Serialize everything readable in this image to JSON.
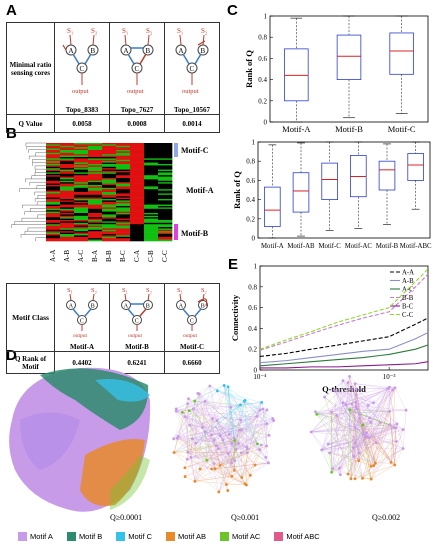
{
  "panels": {
    "A": "A",
    "B": "B",
    "C": "C",
    "D": "D",
    "E": "E"
  },
  "tableA": {
    "row1_label": "Minimal ratio sensing cores",
    "row2_label": "Q Value",
    "topologies": [
      {
        "name": "Topo_8383",
        "q": "0.0058"
      },
      {
        "name": "Topo_7627",
        "q": "0.0008"
      },
      {
        "name": "Topo_10567",
        "q": "0.0014"
      }
    ]
  },
  "circuit": {
    "s1": "S₁",
    "s2": "S₂",
    "a": "A",
    "b": "B",
    "c": "C",
    "output": "output"
  },
  "heatmap": {
    "columns": [
      "A-A",
      "A-B",
      "A-C",
      "B-A",
      "B-B",
      "B-C",
      "C-A",
      "C-B",
      "C-C"
    ],
    "cluster_labels": [
      "Motif-C",
      "Motif-A",
      "Motif-B"
    ]
  },
  "tableB": {
    "row1_label": "Motif Class",
    "row2_label": "Q Rank of Motif",
    "motifs": [
      {
        "name": "Motif-A",
        "rank": "0.4402"
      },
      {
        "name": "Motif-B",
        "rank": "0.6241"
      },
      {
        "name": "Motif-C",
        "rank": "0.6660"
      }
    ]
  },
  "chart_data": [
    {
      "type": "box",
      "ylabel": "Rank of Q",
      "ylim": [
        0,
        1
      ],
      "yticks": [
        "0",
        "0.2",
        "0.4",
        "0.6",
        "0.8",
        "1"
      ],
      "categories": [
        "Motif-A",
        "Motif-B",
        "Motif-C"
      ],
      "boxes": [
        {
          "min": 0.0,
          "q1": 0.2,
          "median": 0.44,
          "q3": 0.69,
          "max": 0.98
        },
        {
          "min": 0.04,
          "q1": 0.4,
          "median": 0.62,
          "q3": 0.82,
          "max": 1.0
        },
        {
          "min": 0.08,
          "q1": 0.45,
          "median": 0.67,
          "q3": 0.84,
          "max": 1.0
        }
      ]
    },
    {
      "type": "box",
      "ylabel": "Rank of Q",
      "ylim": [
        0,
        1
      ],
      "yticks": [
        "0",
        "0.2",
        "0.4",
        "0.6",
        "0.8",
        "1"
      ],
      "categories": [
        "Motif-A",
        "Motif-AB",
        "Motif-C",
        "Motif-AC",
        "Motif-B",
        "Motif-ABC"
      ],
      "boxes": [
        {
          "min": 0.0,
          "q1": 0.12,
          "median": 0.29,
          "q3": 0.53,
          "max": 0.97
        },
        {
          "min": 0.02,
          "q1": 0.27,
          "median": 0.49,
          "q3": 0.68,
          "max": 0.99
        },
        {
          "min": 0.08,
          "q1": 0.4,
          "median": 0.61,
          "q3": 0.78,
          "max": 1.0
        },
        {
          "min": 0.1,
          "q1": 0.43,
          "median": 0.64,
          "q3": 0.86,
          "max": 1.0
        },
        {
          "min": 0.14,
          "q1": 0.5,
          "median": 0.71,
          "q3": 0.8,
          "max": 0.98
        },
        {
          "min": 0.3,
          "q1": 0.6,
          "median": 0.76,
          "q3": 0.88,
          "max": 1.0
        }
      ]
    },
    {
      "type": "line",
      "xlabel": "Q-threshold",
      "ylabel": "Connectivity",
      "xscale": "log",
      "xticks": [
        "10⁻⁴",
        "10⁻³"
      ],
      "xlim": [
        0.0001,
        0.002
      ],
      "ylim": [
        0,
        1
      ],
      "yticks": [
        "0",
        "0.2",
        "0.4",
        "0.6",
        "0.8",
        "1"
      ],
      "x": [
        0.0001,
        0.00016,
        0.00025,
        0.0004,
        0.00063,
        0.001,
        0.0016,
        0.002
      ],
      "series": [
        {
          "name": "A-A",
          "color": "#000000",
          "dash": "4,2",
          "values": [
            0.13,
            0.16,
            0.2,
            0.24,
            0.28,
            0.32,
            0.44,
            0.5
          ]
        },
        {
          "name": "A-B",
          "color": "#8a8fc7",
          "dash": "",
          "values": [
            0.07,
            0.09,
            0.12,
            0.15,
            0.18,
            0.2,
            0.3,
            0.36
          ]
        },
        {
          "name": "A-C",
          "color": "#2b7a3c",
          "dash": "",
          "values": [
            0.04,
            0.06,
            0.08,
            0.1,
            0.12,
            0.15,
            0.2,
            0.24
          ]
        },
        {
          "name": "B-B",
          "color": "#c77ad1",
          "dash": "4,2",
          "values": [
            0.19,
            0.27,
            0.35,
            0.43,
            0.5,
            0.56,
            0.8,
            0.92
          ]
        },
        {
          "name": "B-C",
          "color": "#8b1a8b",
          "dash": "",
          "values": [
            0.02,
            0.02,
            0.03,
            0.03,
            0.04,
            0.05,
            0.06,
            0.08
          ]
        },
        {
          "name": "C-C",
          "color": "#8fd82a",
          "dash": "4,2",
          "values": [
            0.2,
            0.29,
            0.37,
            0.46,
            0.53,
            0.6,
            0.85,
            0.97
          ]
        }
      ]
    }
  ],
  "networks": {
    "labels": [
      "Q≥0.0001",
      "Q≥0.001",
      "Q≥0.002"
    ]
  },
  "legend": [
    {
      "name": "Motif A",
      "color": "#c89be8"
    },
    {
      "name": "Motif B",
      "color": "#2e8b6f"
    },
    {
      "name": "Motif C",
      "color": "#35c2e8"
    },
    {
      "name": "Motif AB",
      "color": "#e8892a"
    },
    {
      "name": "Motif AC",
      "color": "#6dc32a"
    },
    {
      "name": "Motif ABC",
      "color": "#e05a8a"
    }
  ]
}
